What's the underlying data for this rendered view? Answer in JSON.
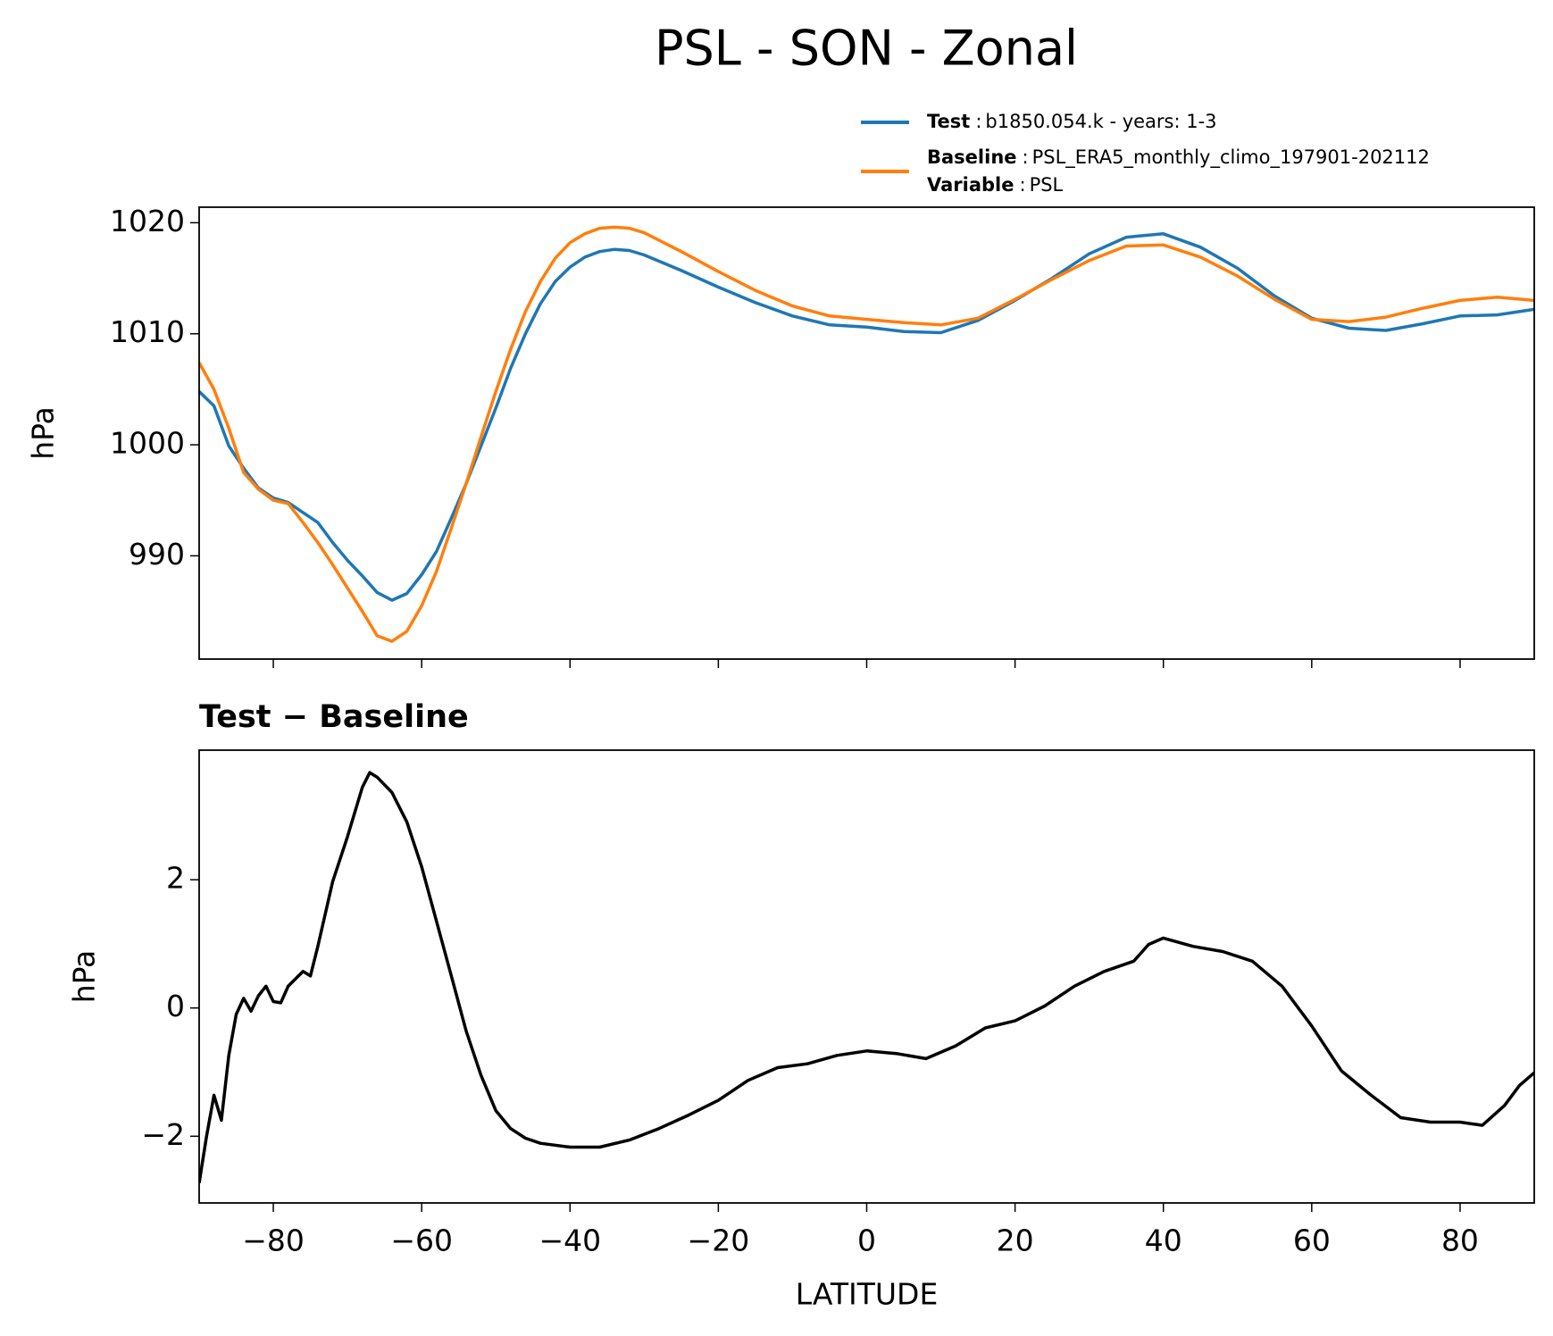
{
  "chart_data": [
    {
      "type": "line",
      "title": "PSL - SON - Zonal",
      "ylabel": "hPa",
      "legend_separator": ":",
      "legend_descriptions": [
        "b1850.054.k - years: 1-3",
        "PSL_ERA5_monthly_climo_197901-202112"
      ],
      "legend_extra": {
        "name": "Variable",
        "text": "PSL"
      },
      "x": [
        -90,
        -88,
        -86,
        -84,
        -82,
        -80,
        -78,
        -76,
        -74,
        -72,
        -70,
        -68,
        -66,
        -64,
        -62,
        -60,
        -58,
        -56,
        -54,
        -52,
        -50,
        -48,
        -46,
        -44,
        -42,
        -40,
        -38,
        -36,
        -34,
        -32,
        -30,
        -25,
        -20,
        -15,
        -10,
        -5,
        0,
        5,
        10,
        15,
        20,
        25,
        30,
        35,
        40,
        45,
        50,
        55,
        60,
        65,
        70,
        75,
        80,
        85,
        90
      ],
      "series": [
        {
          "name": "Test",
          "color": "#1f77b4",
          "values": [
            1004.8,
            1003.5,
            999.9,
            997.9,
            996.1,
            995.2,
            994.8,
            993.9,
            993.0,
            991.2,
            989.6,
            988.2,
            986.7,
            986.0,
            986.6,
            988.3,
            990.4,
            993.4,
            996.5,
            999.9,
            1003.3,
            1006.9,
            1010.0,
            1012.7,
            1014.7,
            1016.0,
            1016.9,
            1017.4,
            1017.6,
            1017.5,
            1017.1,
            1015.7,
            1014.2,
            1012.8,
            1011.6,
            1010.8,
            1010.6,
            1010.2,
            1010.1,
            1011.2,
            1013.0,
            1015.0,
            1017.2,
            1018.7,
            1019.0,
            1017.8,
            1015.9,
            1013.4,
            1011.4,
            1010.5,
            1010.3,
            1010.9,
            1011.6,
            1011.7,
            1012.2
          ]
        },
        {
          "name": "Baseline",
          "color": "#ff7f0e",
          "values": [
            1007.4,
            1005.0,
            1001.5,
            997.5,
            996.0,
            995.0,
            994.7,
            993.0,
            991.2,
            989.2,
            987.1,
            985.0,
            982.8,
            982.3,
            983.2,
            985.5,
            988.6,
            992.5,
            996.5,
            1000.7,
            1004.8,
            1008.6,
            1012.0,
            1014.7,
            1016.8,
            1018.2,
            1019.0,
            1019.5,
            1019.6,
            1019.5,
            1019.1,
            1017.4,
            1015.6,
            1013.9,
            1012.5,
            1011.6,
            1011.3,
            1011.0,
            1010.8,
            1011.4,
            1013.1,
            1014.9,
            1016.6,
            1017.9,
            1018.0,
            1016.9,
            1015.2,
            1013.1,
            1011.3,
            1011.1,
            1011.5,
            1012.3,
            1013.0,
            1013.3,
            1013.0
          ]
        }
      ],
      "xlim": [
        -90,
        90
      ],
      "xticks": [
        -80,
        -60,
        -40,
        -20,
        0,
        20,
        40,
        60,
        80
      ],
      "ylim": [
        980.7,
        1021.4
      ],
      "yticks": [
        990,
        1000,
        1010,
        1020
      ]
    },
    {
      "type": "line",
      "title": "Test − Baseline",
      "xlabel": "LATITUDE",
      "ylabel": "hPa",
      "x": [
        -90,
        -89,
        -88,
        -87,
        -86,
        -85,
        -84,
        -83,
        -82,
        -81,
        -80,
        -79,
        -78,
        -76,
        -75,
        -74,
        -72,
        -70,
        -68,
        -67,
        -66,
        -64,
        -62,
        -60,
        -58,
        -56,
        -54,
        -52,
        -50,
        -48,
        -46,
        -44,
        -40,
        -36,
        -32,
        -28,
        -24,
        -20,
        -16,
        -12,
        -8,
        -4,
        0,
        4,
        8,
        12,
        16,
        20,
        24,
        28,
        32,
        36,
        38,
        40,
        44,
        48,
        52,
        56,
        60,
        64,
        68,
        72,
        76,
        80,
        83,
        86,
        88,
        90
      ],
      "series": [
        {
          "name": "Test − Baseline",
          "color": "#000000",
          "values": [
            -2.73,
            -2.0,
            -1.36,
            -1.75,
            -0.74,
            -0.1,
            0.15,
            -0.05,
            0.19,
            0.34,
            0.1,
            0.08,
            0.34,
            0.57,
            0.5,
            0.96,
            1.97,
            2.67,
            3.44,
            3.67,
            3.6,
            3.36,
            2.9,
            2.2,
            1.35,
            0.5,
            -0.36,
            -1.05,
            -1.6,
            -1.88,
            -2.03,
            -2.11,
            -2.17,
            -2.17,
            -2.06,
            -1.88,
            -1.67,
            -1.44,
            -1.13,
            -0.93,
            -0.87,
            -0.74,
            -0.67,
            -0.71,
            -0.79,
            -0.59,
            -0.31,
            -0.2,
            0.03,
            0.34,
            0.57,
            0.73,
            0.99,
            1.09,
            0.96,
            0.88,
            0.73,
            0.34,
            -0.28,
            -0.98,
            -1.36,
            -1.71,
            -1.78,
            -1.78,
            -1.83,
            -1.52,
            -1.21,
            -1.01
          ]
        }
      ],
      "xlim": [
        -90,
        90
      ],
      "xticks": [
        {
          "value": -80,
          "label": "−80"
        },
        {
          "value": -60,
          "label": "−60"
        },
        {
          "value": -40,
          "label": "−40"
        },
        {
          "value": -20,
          "label": "−20"
        },
        0,
        20,
        40,
        60,
        80
      ],
      "ylim": [
        -3.04,
        4.02
      ],
      "yticks": [
        {
          "value": -2,
          "label": "−2"
        },
        0,
        2
      ]
    }
  ]
}
